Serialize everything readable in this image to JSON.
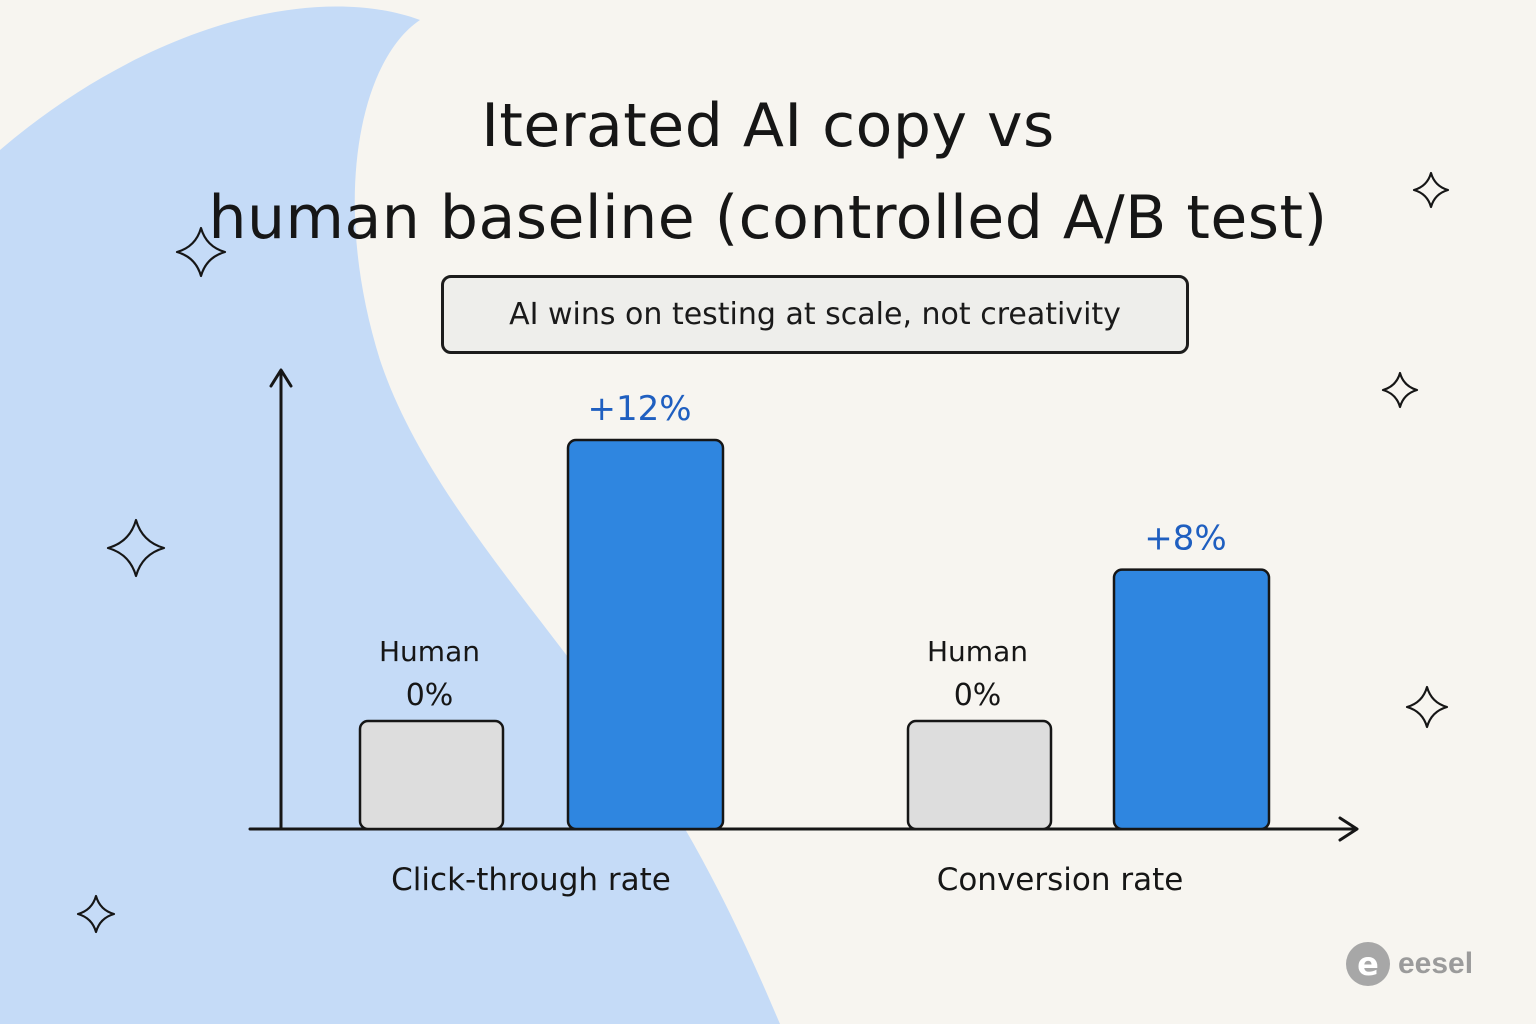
{
  "title_lines": [
    "Iterated AI copy vs",
    "human baseline (controlled A/B test)"
  ],
  "subtitle": "AI wins on testing at scale, not creativity",
  "brand": {
    "mark": "e",
    "name": "eesel"
  },
  "colors": {
    "background": "#f7f5f0",
    "swoosh": "#c5dbf7",
    "human_bar": "#dddddd",
    "ai_bar": "#2f86e0",
    "ai_label": "#1f5fc0",
    "ink": "#161616"
  },
  "icons": [
    "sparkle-icon",
    "logo-icon"
  ],
  "chart_data": {
    "type": "bar",
    "title": "Iterated AI copy vs human baseline (controlled A/B test)",
    "categories": [
      "Click-through rate",
      "Conversion rate"
    ],
    "series": [
      {
        "name": "Human",
        "values": [
          0,
          0
        ],
        "labels": [
          "0%",
          "0%"
        ],
        "color": "#dddddd"
      },
      {
        "values": [
          12,
          8
        ],
        "labels": [
          "+12%",
          "+8%"
        ],
        "color": "#2f86e0"
      }
    ],
    "unit": "%",
    "grid": false,
    "legend": "none",
    "note": "Human bars drawn at a baseline height; AI bars scaled by relative lift"
  }
}
